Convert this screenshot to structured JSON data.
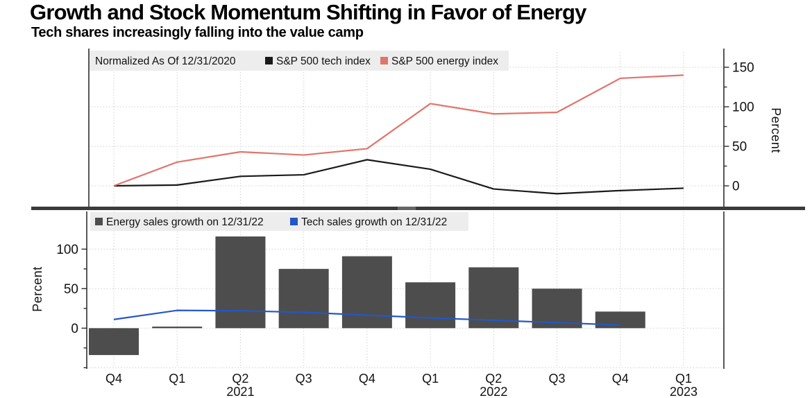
{
  "header": {
    "title": "Growth and Stock Momentum Shifting in Favor of Energy",
    "subtitle": "Tech shares increasingly falling into the value camp"
  },
  "colors": {
    "tech_line": "#1a1a1a",
    "energy_line": "#e0756c",
    "energy_bar": "#4d4d4d",
    "tech_sales_line": "#2457c5",
    "legend_background": "#ededed",
    "divider": "#3b3b3b"
  },
  "chart_data": [
    {
      "type": "line",
      "note": "Normalized As Of 12/31/2020",
      "categories": [
        "Q4",
        "Q1",
        "Q2",
        "Q3",
        "Q4",
        "Q1",
        "Q2",
        "Q3",
        "Q4",
        "Q1"
      ],
      "series": [
        {
          "name": "S&P 500 tech index",
          "color": "#1a1a1a",
          "values": [
            0,
            1,
            12,
            14,
            33,
            21,
            -4,
            -10,
            -6,
            -3
          ]
        },
        {
          "name": "S&P 500 energy index",
          "color": "#e0756c",
          "values": [
            0,
            30,
            43,
            39,
            47,
            104,
            91,
            93,
            136,
            140
          ]
        }
      ],
      "ylabel": "Percent",
      "yticks": [
        0,
        50,
        100,
        150
      ],
      "minor_yticks": [
        25,
        75,
        125
      ],
      "ylim": [
        -25,
        169
      ],
      "axis_side": "right",
      "grid": true,
      "legend_position": "top-left"
    },
    {
      "type": "bar",
      "categories": [
        "Q4",
        "Q1",
        "Q2",
        "Q3",
        "Q4",
        "Q1",
        "Q2",
        "Q3",
        "Q4",
        "Q1"
      ],
      "series": [
        {
          "name": "Energy sales growth on 12/31/22",
          "type": "bar",
          "color": "#4d4d4d",
          "values": [
            -34,
            2,
            116,
            75,
            91,
            58,
            77,
            50,
            21,
            null
          ]
        },
        {
          "name": "Tech sales growth on 12/31/22",
          "type": "line",
          "color": "#2457c5",
          "values": [
            11,
            22.5,
            22,
            20,
            16.5,
            13,
            10,
            7,
            4,
            null
          ]
        }
      ],
      "ylabel": "Percent",
      "yticks": [
        0,
        50,
        100
      ],
      "minor_yticks": [
        -50,
        -25,
        25,
        75
      ],
      "ylim": [
        -50,
        148
      ],
      "axis_side": "left",
      "grid": true,
      "legend_position": "top-left",
      "year_labels": [
        {
          "index": 2,
          "label": "2021"
        },
        {
          "index": 6,
          "label": "2022"
        },
        {
          "index": 9,
          "label": "2023"
        }
      ]
    }
  ]
}
